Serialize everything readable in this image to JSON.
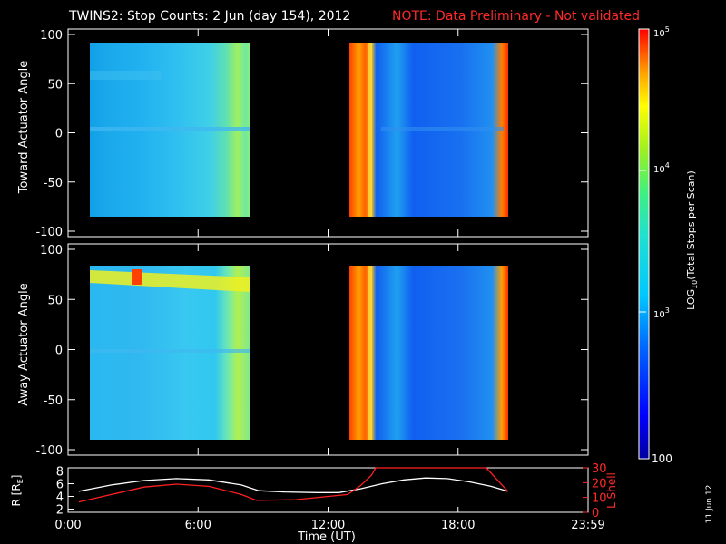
{
  "header": {
    "title": "TWINS2: Stop Counts:  2 Jun (day 154), 2012",
    "note": "NOTE: Data Preliminary - Not validated"
  },
  "chart_data": [
    {
      "type": "heatmap",
      "ylabel": "Toward Actuator Angle",
      "yticks": [
        "100",
        "50",
        "0",
        "-50",
        "-100"
      ],
      "ylim": [
        -100,
        100
      ],
      "xlim": [
        0,
        24
      ],
      "data_coverage_hours": [
        [
          0.5,
          8.3
        ],
        [
          12.9,
          20.3
        ]
      ],
      "angle_range": [
        -88,
        90
      ],
      "description_of_levels": "mostly 10^2.9-10^3.3 counts; saturated red/orange near 13:00-13:30 and ~20:00; green band 7:30-8:3"
    },
    {
      "type": "heatmap",
      "ylabel": "Away Actuator Angle",
      "yticks": [
        "100",
        "50",
        "0",
        "-50",
        "-100"
      ],
      "ylim": [
        -100,
        100
      ],
      "xlim": [
        0,
        24
      ],
      "data_coverage_hours": [
        [
          0.5,
          8.3
        ],
        [
          12.9,
          20.3
        ]
      ],
      "angle_range": [
        -90,
        90
      ],
      "feature": "yellow/red band near angle 70-80 from 0:30 to 8:20"
    },
    {
      "type": "line",
      "ylabel_left": "R [R",
      "ylabel_left_sub": "E",
      "ylabel_left_end": "]",
      "ylabel_right": "L Shell",
      "yticks_left": [
        "8",
        "6",
        "4",
        "2"
      ],
      "yticks_right": [
        "30",
        "20",
        "10",
        "0"
      ],
      "ylim_left": [
        1.5,
        8.5
      ],
      "ylim_right": [
        0,
        30
      ],
      "xlabel": "Time (UT)",
      "xticks": [
        "0:00",
        "6:00",
        "12:00",
        "18:00",
        "23:59"
      ],
      "series": [
        {
          "color": "#ffffff",
          "axis": "left",
          "x": [
            0.5,
            2.0,
            3.5,
            5.0,
            6.5,
            8.0,
            8.8,
            10.0,
            11.5,
            12.5,
            13.5,
            14.5,
            15.5,
            16.5,
            17.5,
            18.5,
            19.5,
            20.3
          ],
          "y": [
            4.8,
            5.8,
            6.5,
            6.8,
            6.6,
            5.8,
            4.9,
            4.7,
            4.6,
            4.6,
            5.2,
            6.0,
            6.6,
            6.9,
            6.8,
            6.3,
            5.6,
            4.8
          ]
        },
        {
          "color": "#ff2020",
          "axis": "right",
          "x": [
            0.5,
            2.0,
            3.5,
            5.0,
            6.5,
            8.0,
            8.7,
            10.5,
            12.9,
            13.5,
            14.0,
            14.2,
            19.3,
            20.3
          ],
          "y": [
            7.0,
            12.0,
            17.0,
            19.0,
            17.5,
            12.0,
            8.0,
            8.5,
            12.0,
            18.0,
            25.0,
            30.0,
            30.0,
            14.0
          ]
        }
      ]
    }
  ],
  "colorbar": {
    "label": "LOG",
    "label_sub": "10",
    "label_rest": "(Total Stops per Scan)",
    "top_base": "10",
    "top_exp": "5",
    "mid_base": "10",
    "mid_exp": "4",
    "low_base": "10",
    "low_exp": "3",
    "bottom_label": "100"
  },
  "footer": {
    "stamp": "11 Jun 12"
  },
  "colors": {
    "background": "#000000",
    "axes": "#ffffff",
    "note": "#ff2a2a"
  }
}
